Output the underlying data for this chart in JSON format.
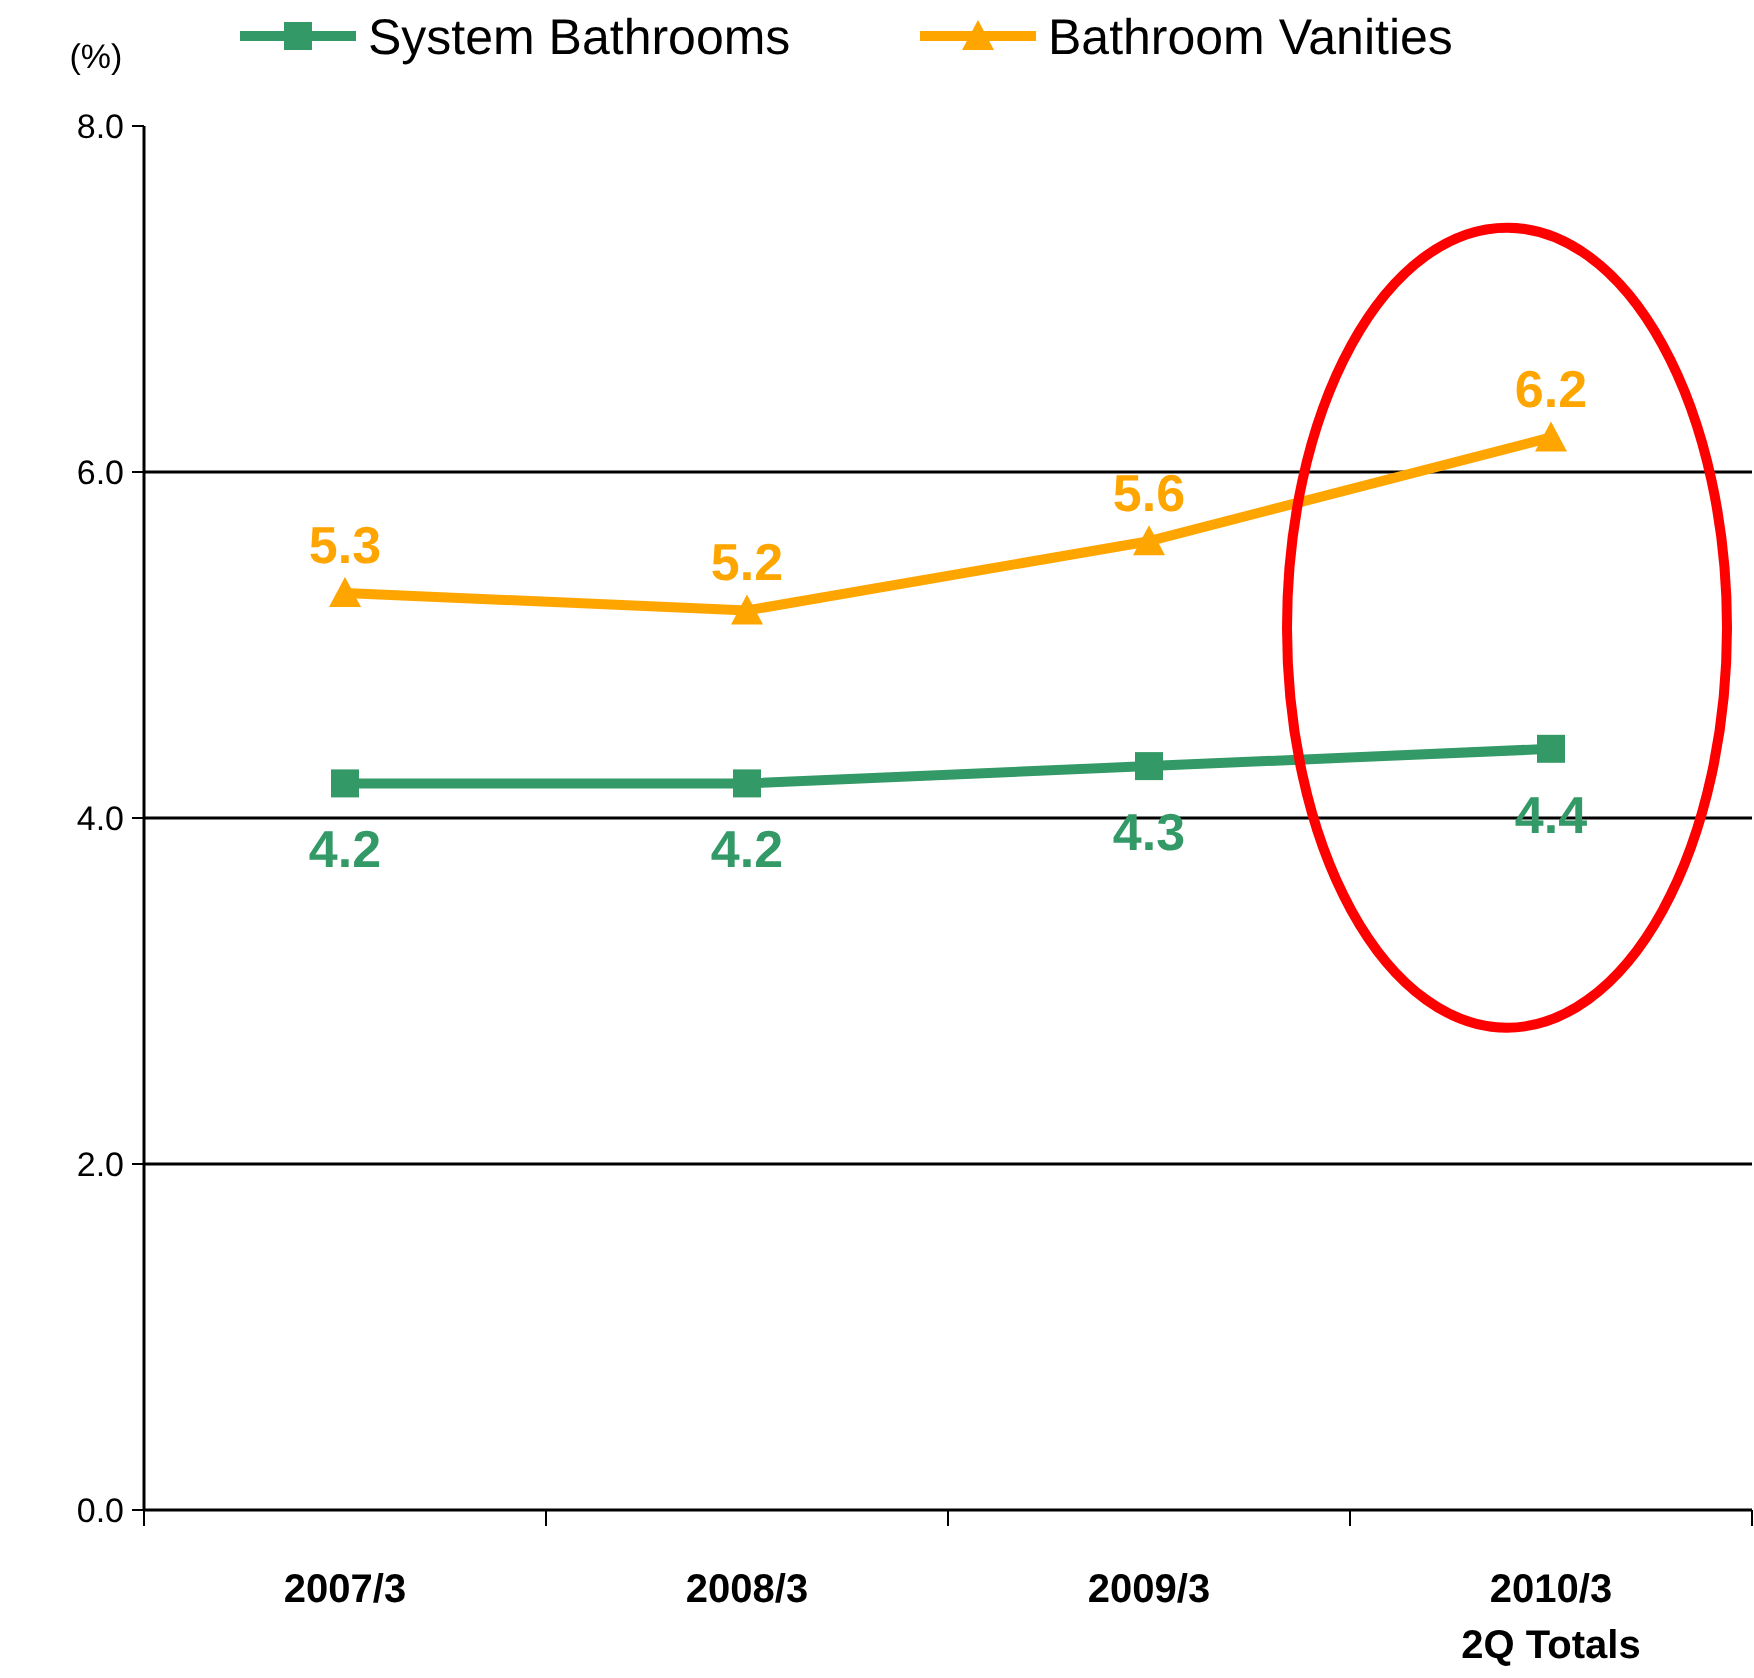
{
  "chart_data": {
    "type": "line",
    "ylabel": "(%)",
    "categories": [
      "2007/3",
      "2008/3",
      "2009/3",
      "2010/3\n2Q Totals"
    ],
    "series": [
      {
        "name": "System Bathrooms",
        "color": "#339966",
        "marker": "square",
        "values": [
          4.2,
          4.2,
          4.3,
          4.4
        ]
      },
      {
        "name": "Bathroom Vanities",
        "color": "#ffa500",
        "marker": "triangle",
        "values": [
          5.3,
          5.2,
          5.6,
          6.2
        ]
      }
    ],
    "ylim": [
      0,
      8
    ],
    "yticks": [
      {
        "value": 0,
        "label": "0.0"
      },
      {
        "value": 2,
        "label": "2.0"
      },
      {
        "value": 4,
        "label": "4.0"
      },
      {
        "value": 6,
        "label": "6.0"
      },
      {
        "value": 8,
        "label": "8.0"
      }
    ],
    "grid": "y",
    "legend": "top",
    "data_labels": true,
    "line_style": "solid"
  }
}
